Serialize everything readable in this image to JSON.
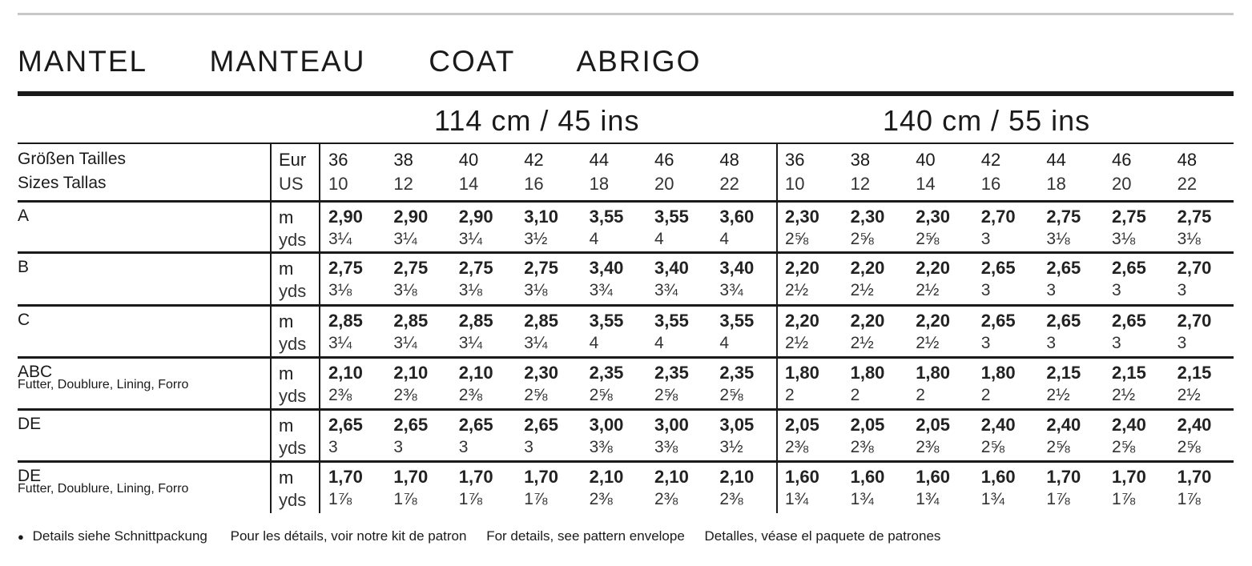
{
  "title": "MANTEL   MANTEAU   COAT   ABRIGO",
  "widths": [
    "114 cm / 45 ins",
    "140 cm / 55 ins"
  ],
  "size_header": {
    "label_line1": "Größen Tailles",
    "label_line2": "Sizes Tallas",
    "eur_label": "Eur",
    "us_label": "US"
  },
  "eur_sizes": [
    "36",
    "38",
    "40",
    "42",
    "44",
    "46",
    "48"
  ],
  "us_sizes": [
    "10",
    "12",
    "14",
    "16",
    "18",
    "20",
    "22"
  ],
  "unit_m": "m",
  "unit_yds": "yds",
  "rows": [
    {
      "label": "A",
      "sublabel": "",
      "m": [
        "2,90",
        "2,90",
        "2,90",
        "3,10",
        "3,55",
        "3,55",
        "3,60",
        "2,30",
        "2,30",
        "2,30",
        "2,70",
        "2,75",
        "2,75",
        "2,75"
      ],
      "yds": [
        "3¼",
        "3¼",
        "3¼",
        "3½",
        "4",
        "4",
        "4",
        "2⅝",
        "2⅝",
        "2⅝",
        "3",
        "3⅛",
        "3⅛",
        "3⅛"
      ]
    },
    {
      "label": "B",
      "sublabel": "",
      "m": [
        "2,75",
        "2,75",
        "2,75",
        "2,75",
        "3,40",
        "3,40",
        "3,40",
        "2,20",
        "2,20",
        "2,20",
        "2,65",
        "2,65",
        "2,65",
        "2,70"
      ],
      "yds": [
        "3⅛",
        "3⅛",
        "3⅛",
        "3⅛",
        "3¾",
        "3¾",
        "3¾",
        "2½",
        "2½",
        "2½",
        "3",
        "3",
        "3",
        "3"
      ]
    },
    {
      "label": "C",
      "sublabel": "",
      "m": [
        "2,85",
        "2,85",
        "2,85",
        "2,85",
        "3,55",
        "3,55",
        "3,55",
        "2,20",
        "2,20",
        "2,20",
        "2,65",
        "2,65",
        "2,65",
        "2,70"
      ],
      "yds": [
        "3¼",
        "3¼",
        "3¼",
        "3¼",
        "4",
        "4",
        "4",
        "2½",
        "2½",
        "2½",
        "3",
        "3",
        "3",
        "3"
      ]
    },
    {
      "label": "ABC",
      "sublabel": "Futter, Doublure, Lining, Forro",
      "m": [
        "2,10",
        "2,10",
        "2,10",
        "2,30",
        "2,35",
        "2,35",
        "2,35",
        "1,80",
        "1,80",
        "1,80",
        "1,80",
        "2,15",
        "2,15",
        "2,15"
      ],
      "yds": [
        "2⅜",
        "2⅜",
        "2⅜",
        "2⅝",
        "2⅝",
        "2⅝",
        "2⅝",
        "2",
        "2",
        "2",
        "2",
        "2½",
        "2½",
        "2½"
      ]
    },
    {
      "label": "DE",
      "sublabel": "",
      "m": [
        "2,65",
        "2,65",
        "2,65",
        "2,65",
        "3,00",
        "3,00",
        "3,05",
        "2,05",
        "2,05",
        "2,05",
        "2,40",
        "2,40",
        "2,40",
        "2,40"
      ],
      "yds": [
        "3",
        "3",
        "3",
        "3",
        "3⅜",
        "3⅜",
        "3½",
        "2⅜",
        "2⅜",
        "2⅜",
        "2⅝",
        "2⅝",
        "2⅝",
        "2⅝"
      ]
    },
    {
      "label": "DE",
      "sublabel": "Futter, Doublure, Lining, Forro",
      "m": [
        "1,70",
        "1,70",
        "1,70",
        "1,70",
        "2,10",
        "2,10",
        "2,10",
        "1,60",
        "1,60",
        "1,60",
        "1,60",
        "1,70",
        "1,70",
        "1,70"
      ],
      "yds": [
        "1⅞",
        "1⅞",
        "1⅞",
        "1⅞",
        "2⅜",
        "2⅜",
        "2⅜",
        "1¾",
        "1¾",
        "1¾",
        "1¾",
        "1⅞",
        "1⅞",
        "1⅞"
      ]
    }
  ],
  "footer": {
    "bullet": "●",
    "notes": [
      "Details siehe Schnittpackung",
      "Pour les détails, voir notre kit de patron",
      "For details, see pattern envelope",
      "Detalles, véase el paquete de patrones"
    ]
  }
}
